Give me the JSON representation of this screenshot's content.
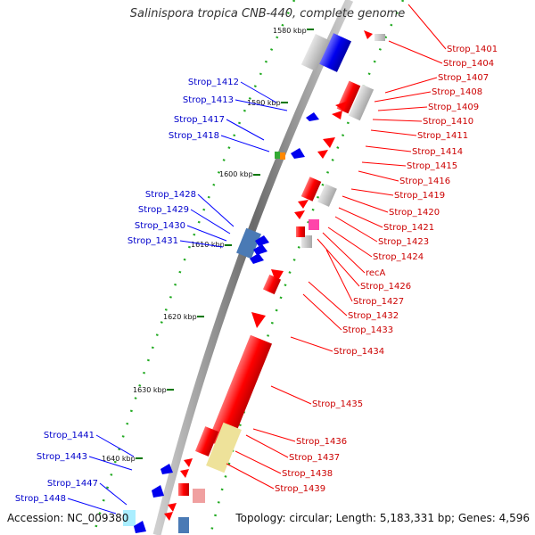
{
  "title": "Salinispora tropica CNB-440, complete genome",
  "footer": {
    "accession": "Accession: NC_009380",
    "topology": "Topology: circular; Length: 5,183,331 bp; Genes: 4,596"
  },
  "scale_labels": [
    {
      "label": "1580 kbp",
      "kbp": 1580
    },
    {
      "label": "1590 kbp",
      "kbp": 1590
    },
    {
      "label": "1600 kbp",
      "kbp": 1600
    },
    {
      "label": "1610 kbp",
      "kbp": 1610
    },
    {
      "label": "1620 kbp",
      "kbp": 1620
    },
    {
      "label": "1630 kbp",
      "kbp": 1630
    },
    {
      "label": "1640 kbp",
      "kbp": 1640
    }
  ],
  "genes_left": [
    {
      "name": "Strop_1412",
      "strand": "-"
    },
    {
      "name": "Strop_1413",
      "strand": "-"
    },
    {
      "name": "Strop_1417",
      "strand": "-"
    },
    {
      "name": "Strop_1418",
      "strand": "-"
    },
    {
      "name": "Strop_1428",
      "strand": "-"
    },
    {
      "name": "Strop_1429",
      "strand": "-"
    },
    {
      "name": "Strop_1430",
      "strand": "-"
    },
    {
      "name": "Strop_1431",
      "strand": "-"
    },
    {
      "name": "Strop_1441",
      "strand": "-"
    },
    {
      "name": "Strop_1443",
      "strand": "-"
    },
    {
      "name": "Strop_1447",
      "strand": "-"
    },
    {
      "name": "Strop_1448",
      "strand": "-"
    }
  ],
  "genes_right": [
    {
      "name": "Strop_1401",
      "strand": "+"
    },
    {
      "name": "Strop_1404",
      "strand": "+"
    },
    {
      "name": "Strop_1407",
      "strand": "+"
    },
    {
      "name": "Strop_1408",
      "strand": "+"
    },
    {
      "name": "Strop_1409",
      "strand": "+"
    },
    {
      "name": "Strop_1410",
      "strand": "+"
    },
    {
      "name": "Strop_1411",
      "strand": "+"
    },
    {
      "name": "Strop_1414",
      "strand": "+"
    },
    {
      "name": "Strop_1415",
      "strand": "+"
    },
    {
      "name": "Strop_1416",
      "strand": "+"
    },
    {
      "name": "Strop_1419",
      "strand": "+"
    },
    {
      "name": "Strop_1420",
      "strand": "+"
    },
    {
      "name": "Strop_1421",
      "strand": "+"
    },
    {
      "name": "Strop_1423",
      "strand": "+"
    },
    {
      "name": "Strop_1424",
      "strand": "+"
    },
    {
      "name": "recA",
      "strand": "+"
    },
    {
      "name": "Strop_1426",
      "strand": "+"
    },
    {
      "name": "Strop_1427",
      "strand": "+"
    },
    {
      "name": "Strop_1432",
      "strand": "+"
    },
    {
      "name": "Strop_1433",
      "strand": "+"
    },
    {
      "name": "Strop_1434",
      "strand": "+"
    },
    {
      "name": "Strop_1435",
      "strand": "+"
    },
    {
      "name": "Strop_1436",
      "strand": "+"
    },
    {
      "name": "Strop_1437",
      "strand": "+"
    },
    {
      "name": "Strop_1438",
      "strand": "+"
    },
    {
      "name": "Strop_1439",
      "strand": "+"
    }
  ],
  "colors": {
    "forward_strand": "#ff0000",
    "reverse_strand": "#0000ff",
    "left_label": "#0000cc",
    "right_label": "#cc0000",
    "backbone": "#888888",
    "tick": "#007700",
    "cog_gray": "#bbbbbb"
  }
}
